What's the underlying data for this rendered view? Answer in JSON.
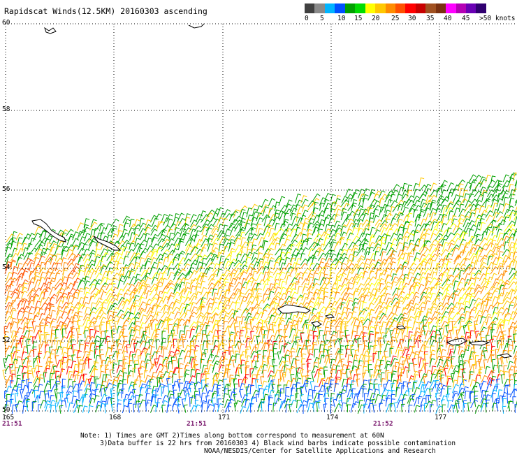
{
  "title": "Rapidscat Winds(12.5KM) 20160303 ascending",
  "legend": {
    "colors": [
      "#404040",
      "#8a8a8a",
      "#00b4ff",
      "#0050ff",
      "#00a000",
      "#00dc00",
      "#ffff00",
      "#ffc800",
      "#ff8c00",
      "#ff5000",
      "#ff0000",
      "#c80000",
      "#a05020",
      "#7a3010",
      "#ff00ff",
      "#b400b4",
      "#6a00b4",
      "#300070"
    ],
    "labels": [
      "0",
      "5",
      "10",
      "15",
      "20",
      "25",
      "30",
      "35",
      "40",
      "45",
      ">50 knots"
    ]
  },
  "map": {
    "lat_labels": [
      "60",
      "58",
      "56",
      "54",
      "52",
      "50"
    ],
    "lon_labels": [
      "165",
      "168",
      "171",
      "174",
      "177"
    ],
    "time_labels": [
      "21:51",
      "21:51",
      "21:52"
    ]
  },
  "notes": {
    "line1": "Note: 1) Times are GMT 2)Times along bottom correspond to measurement at 60N",
    "line2": "3)Data buffer is 22 hrs from 20160303 4) Black wind barbs indicate possible contamination",
    "line3": "NOAA/NESDIS/Center for Satellite Applications and Research"
  }
}
